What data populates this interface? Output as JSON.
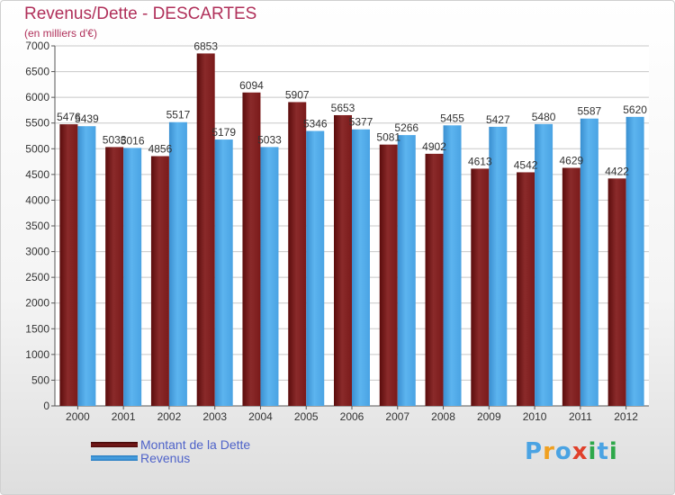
{
  "colors": {
    "dette": "#7a1a1a",
    "revenus": "#4aa3e3",
    "title": "#b0305a",
    "legend_text": "#4f63c9"
  },
  "chart_data": {
    "type": "bar",
    "title": "Revenus/Dette - DESCARTES",
    "subtitle": "(en milliers d'€)",
    "xlabel": "",
    "ylabel": "",
    "categories": [
      "2000",
      "2001",
      "2002",
      "2003",
      "2004",
      "2005",
      "2006",
      "2007",
      "2008",
      "2009",
      "2010",
      "2011",
      "2012"
    ],
    "series": [
      {
        "name": "Montant de la Dette",
        "values": [
          5476,
          5033,
          4856,
          6853,
          6094,
          5907,
          5653,
          5081,
          4902,
          4613,
          4542,
          4629,
          4422
        ]
      },
      {
        "name": "Revenus",
        "values": [
          5439,
          5016,
          5517,
          5179,
          5033,
          5346,
          5377,
          5266,
          5455,
          5427,
          5480,
          5587,
          5620
        ]
      }
    ],
    "ylim": [
      0,
      7000
    ],
    "yticks": [
      0,
      500,
      1000,
      1500,
      2000,
      2500,
      3000,
      3500,
      4000,
      4500,
      5000,
      5500,
      6000,
      6500,
      7000
    ],
    "grid": true,
    "legend_position": "bottom-left"
  },
  "logo": {
    "text": "Proxiti",
    "letters": [
      {
        "char": "P",
        "color": "#4aa3e3"
      },
      {
        "char": "r",
        "color": "#f0a020"
      },
      {
        "char": "o",
        "color": "#4aa3e3"
      },
      {
        "char": "x",
        "color": "#e0402a"
      },
      {
        "char": "i",
        "color": "#2ea84a"
      },
      {
        "char": "t",
        "color": "#4aa3e3"
      },
      {
        "char": "i",
        "color": "#2ea84a"
      }
    ]
  }
}
